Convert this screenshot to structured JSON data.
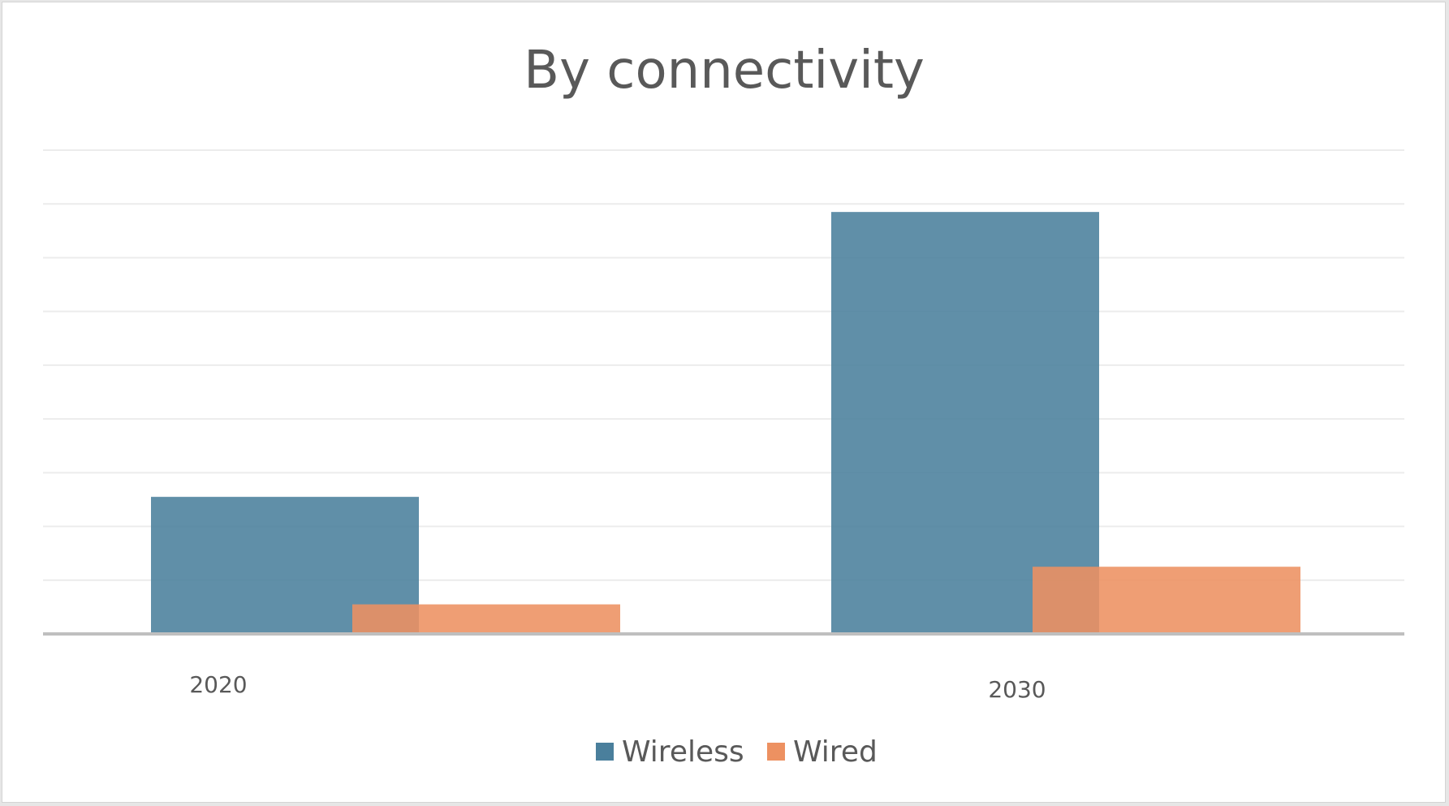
{
  "chart_data": {
    "type": "bar",
    "title": "By connectivity",
    "categories": [
      "2020",
      "2030"
    ],
    "series": [
      {
        "name": "Wireless",
        "values": [
          2.55,
          7.85
        ],
        "color": "#4a7f9c"
      },
      {
        "name": "Wired",
        "values": [
          0.55,
          1.25
        ],
        "color": "#ed9161"
      }
    ],
    "ylim": [
      0,
      9
    ],
    "grid": true,
    "legend": "bottom",
    "xlabel": "",
    "ylabel": ""
  }
}
